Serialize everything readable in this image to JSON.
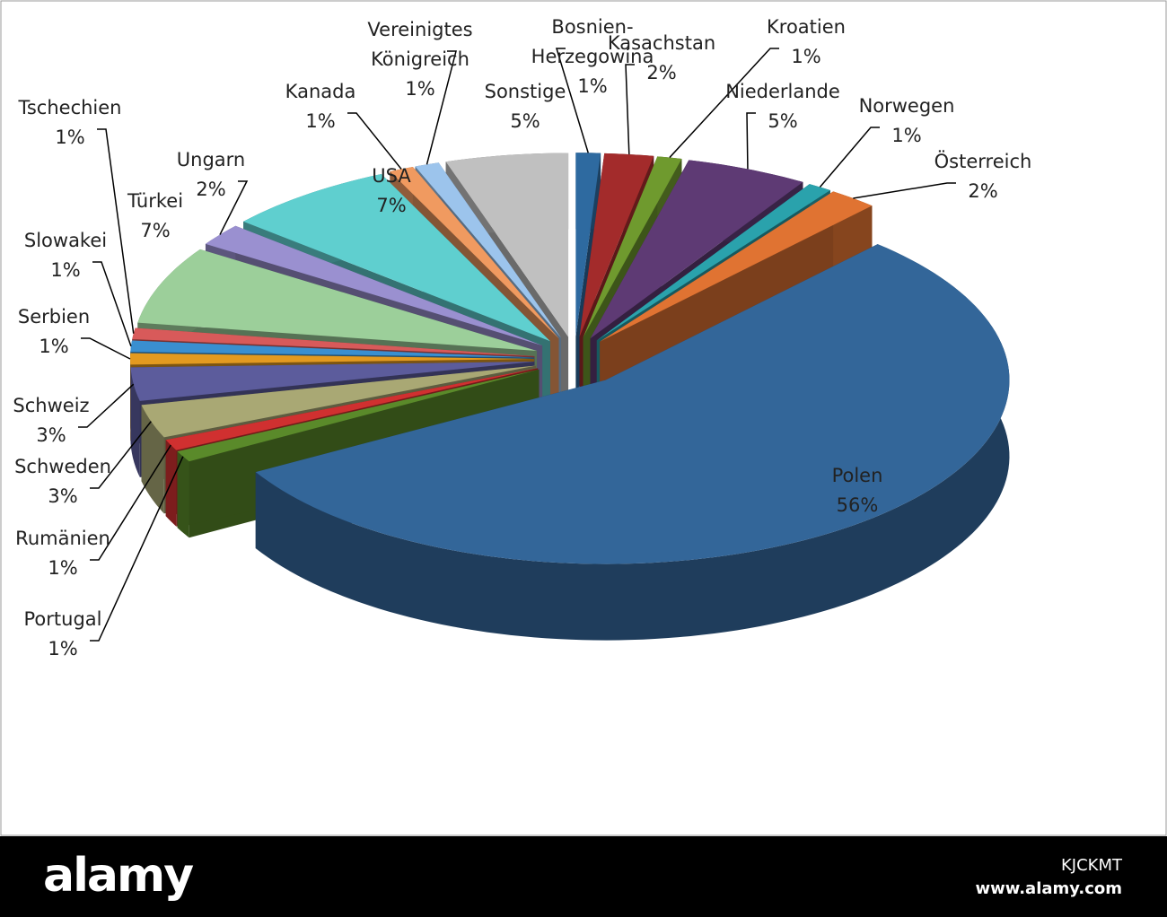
{
  "chart_data": {
    "type": "pie3d",
    "categories": [
      "Bosnien-Herzegowina",
      "Kasachstan",
      "Kroatien",
      "Niederlande",
      "Norwegen",
      "Österreich",
      "Polen",
      "Portugal",
      "Rumänien",
      "Schweden",
      "Schweiz",
      "Serbien",
      "Slowakei",
      "Tschechien",
      "Türkei",
      "Ungarn",
      "USA",
      "Kanada",
      "Vereinigtes Königreich",
      "Sonstige"
    ],
    "values": [
      1,
      2,
      1,
      5,
      1,
      2,
      56,
      1,
      1,
      3,
      3,
      1,
      1,
      1,
      7,
      2,
      7,
      1,
      1,
      5
    ],
    "value_labels": [
      "1%",
      "2%",
      "1%",
      "5%",
      "1%",
      "2%",
      "56%",
      "1%",
      "1%",
      "3%",
      "3%",
      "1%",
      "1%",
      "1%",
      "7%",
      "2%",
      "7%",
      "1%",
      "1%",
      "5%"
    ],
    "colors": [
      "#2e6aa0",
      "#a32b2b",
      "#6f9a2e",
      "#5e3a74",
      "#2aa2ac",
      "#e07332",
      "#336699",
      "#5a8a2a",
      "#d03030",
      "#a9a874",
      "#5c5c9c",
      "#e39a20",
      "#3a8fd0",
      "#d85a5a",
      "#9ccf9a",
      "#9a90d0",
      "#5fcfcf",
      "#f09a60",
      "#9cc4ec",
      "#c0c0c0"
    ]
  },
  "footer": {
    "brand": "alamy",
    "image_id": "KJCKMT",
    "url": "www.alamy.com"
  }
}
